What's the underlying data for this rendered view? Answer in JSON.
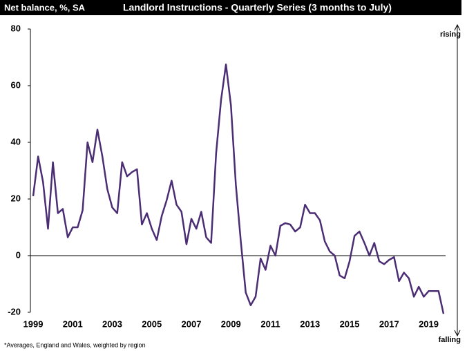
{
  "chart_data": {
    "type": "line",
    "header": "Net balance, %, SA",
    "title": "Landlord Instructions - Quarterly Series (3 months to July)",
    "annotations": [
      "rising",
      "falling"
    ],
    "footnote": "*Averages,  England and Wales, weighted by region",
    "categories": [
      "1999",
      null,
      null,
      null,
      null,
      null,
      null,
      null,
      "2001",
      null,
      null,
      null,
      null,
      null,
      null,
      null,
      "2003",
      null,
      null,
      null,
      null,
      null,
      null,
      null,
      "2005",
      null,
      null,
      null,
      null,
      null,
      null,
      null,
      "2007",
      null,
      null,
      null,
      null,
      null,
      null,
      null,
      "2009",
      null,
      null,
      null,
      null,
      null,
      null,
      null,
      "2011",
      null,
      null,
      null,
      null,
      null,
      null,
      null,
      "2013",
      null,
      null,
      null,
      null,
      null,
      null,
      null,
      "2015",
      null,
      null,
      null,
      null,
      null,
      null,
      null,
      "2017",
      null,
      null,
      null,
      null,
      null,
      null,
      null,
      "2019",
      null,
      null,
      null
    ],
    "series": [
      {
        "name": "Landlord Instructions",
        "color": "#4b2d73",
        "values": [
          21,
          35,
          26,
          9.5,
          33,
          15,
          16.5,
          6.5,
          10,
          10,
          16,
          40,
          33,
          44.5,
          35,
          23.5,
          17,
          15,
          33,
          28,
          29.5,
          30.5,
          11,
          15,
          9.5,
          5.5,
          14,
          19.5,
          26.5,
          18,
          15.5,
          4,
          13,
          9.5,
          15.5,
          6.5,
          4.5,
          36,
          55,
          67.5,
          53,
          25,
          5,
          -13,
          -17.5,
          -14.5,
          -1,
          -5,
          3.5,
          0,
          10.5,
          11.5,
          11,
          8.5,
          10,
          18,
          15,
          15,
          12.5,
          5,
          1.5,
          0,
          -7,
          -8,
          -2,
          7,
          8.5,
          4.5,
          0,
          4.5,
          -2,
          -3,
          -1.5,
          -0.5,
          -9,
          -6,
          -8,
          -14.5,
          -11,
          -14.5,
          -12.5,
          -12.5,
          -12.5,
          -20.5
        ]
      }
    ],
    "ylim": [
      -20,
      80
    ],
    "yticks": [
      -20,
      0,
      20,
      40,
      60,
      80
    ]
  }
}
